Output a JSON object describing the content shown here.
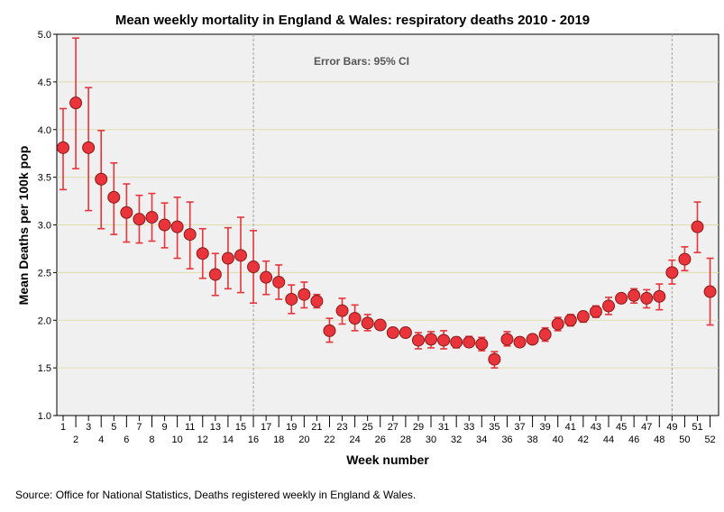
{
  "chart_data": {
    "type": "scatter",
    "title": "Mean weekly mortality in England & Wales: respiratory deaths 2010 - 2019",
    "xlabel": "Week number",
    "ylabel": "Mean Deaths per 100k pop",
    "annotation": "Error Bars: 95% CI",
    "source": "Source: Office for National Statistics, Deaths registered weekly in England & Wales.",
    "ylim": [
      1.0,
      5.0
    ],
    "yticks": [
      "1.0",
      "1.5",
      "2.0",
      "2.5",
      "3.0",
      "3.5",
      "4.0",
      "4.5",
      "5.0"
    ],
    "x": [
      1,
      2,
      3,
      4,
      5,
      6,
      7,
      8,
      9,
      10,
      11,
      12,
      13,
      14,
      15,
      16,
      17,
      18,
      19,
      20,
      21,
      22,
      23,
      24,
      25,
      26,
      27,
      28,
      29,
      30,
      31,
      32,
      33,
      34,
      35,
      36,
      37,
      38,
      39,
      40,
      41,
      42,
      43,
      44,
      45,
      46,
      47,
      48,
      49,
      50,
      51,
      52
    ],
    "values": [
      3.81,
      4.28,
      3.81,
      3.48,
      3.29,
      3.13,
      3.06,
      3.08,
      3.0,
      2.98,
      2.9,
      2.7,
      2.48,
      2.65,
      2.68,
      2.56,
      2.45,
      2.4,
      2.22,
      2.27,
      2.2,
      1.89,
      2.1,
      2.02,
      1.97,
      1.95,
      1.87,
      1.87,
      1.79,
      1.8,
      1.79,
      1.77,
      1.77,
      1.75,
      1.59,
      1.8,
      1.77,
      1.8,
      1.85,
      1.96,
      2.0,
      2.04,
      2.09,
      2.15,
      2.23,
      2.26,
      2.23,
      2.25,
      2.5,
      2.64,
      2.98,
      2.3
    ],
    "ci_low": [
      3.37,
      3.59,
      3.15,
      2.96,
      2.9,
      2.82,
      2.81,
      2.83,
      2.76,
      2.65,
      2.54,
      2.44,
      2.26,
      2.33,
      2.29,
      2.18,
      2.27,
      2.22,
      2.07,
      2.13,
      2.13,
      1.77,
      1.96,
      1.89,
      1.89,
      1.91,
      1.84,
      1.83,
      1.7,
      1.71,
      1.7,
      1.71,
      1.72,
      1.68,
      1.5,
      1.73,
      1.73,
      1.77,
      1.78,
      1.89,
      1.94,
      1.98,
      2.03,
      2.06,
      2.2,
      2.18,
      2.13,
      2.11,
      2.38,
      2.52,
      2.71,
      1.95
    ],
    "ci_high": [
      4.22,
      4.96,
      4.44,
      3.99,
      3.65,
      3.43,
      3.31,
      3.33,
      3.23,
      3.29,
      3.24,
      2.96,
      2.7,
      2.97,
      3.08,
      2.94,
      2.62,
      2.58,
      2.37,
      2.4,
      2.27,
      2.02,
      2.23,
      2.16,
      2.06,
      1.99,
      1.89,
      1.9,
      1.87,
      1.88,
      1.89,
      1.82,
      1.83,
      1.82,
      1.67,
      1.88,
      1.8,
      1.83,
      1.92,
      2.03,
      2.06,
      2.09,
      2.15,
      2.24,
      2.27,
      2.33,
      2.32,
      2.38,
      2.63,
      2.77,
      3.24,
      2.65
    ],
    "reference_lines_x": [
      16,
      49
    ],
    "grid": true,
    "colors": {
      "marker": "#e8343a",
      "error": "#e8343a",
      "plot_bg": "#f0f0f0",
      "grid": "#e0ddb0",
      "ref": "#a0a0a0"
    }
  }
}
